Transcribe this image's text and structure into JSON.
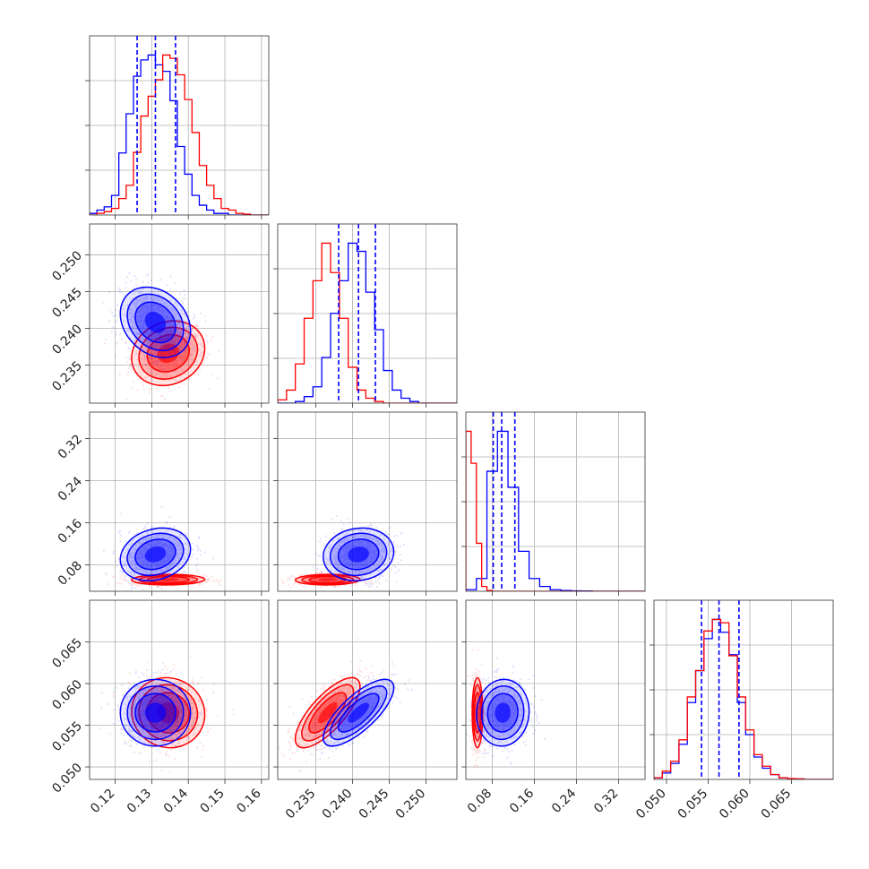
{
  "chart_data": {
    "type": "corner",
    "title": "",
    "colors": {
      "series_a": "#0000ff",
      "series_b": "#ff0000"
    },
    "grid": true,
    "parameters": [
      {
        "range": [
          0.113,
          0.162
        ],
        "ticks": [
          0.12,
          0.13,
          0.14,
          0.15,
          0.16
        ],
        "tick_labels": [
          "0.12",
          "0.13",
          "0.14",
          "0.15",
          "0.16"
        ],
        "label": ""
      },
      {
        "range": [
          0.2298,
          0.2542
        ],
        "ticks": [
          0.235,
          0.24,
          0.245,
          0.25
        ],
        "tick_labels": [
          "0.235",
          "0.240",
          "0.245",
          "0.250"
        ],
        "label": ""
      },
      {
        "range": [
          0.03,
          0.37
        ],
        "ticks": [
          0.08,
          0.16,
          0.24,
          0.32
        ],
        "tick_labels": [
          "0.08",
          "0.16",
          "0.24",
          "0.32"
        ],
        "label": ""
      },
      {
        "range": [
          0.0485,
          0.07
        ],
        "ticks": [
          0.05,
          0.055,
          0.06,
          0.065
        ],
        "tick_labels": [
          "0.050",
          "0.055",
          "0.060",
          "0.065"
        ],
        "label": ""
      }
    ],
    "series": [
      {
        "color": "#0000ff",
        "mean": [
          0.131,
          0.2408,
          0.1,
          0.0565
        ],
        "std": [
          0.0048,
          0.0024,
          0.025,
          0.002
        ],
        "quantiles": [
          [
            0.126,
            0.131,
            0.1365
          ],
          [
            0.2381,
            0.2408,
            0.2431
          ],
          [
            0.082,
            0.098,
            0.123
          ],
          [
            0.0542,
            0.0563,
            0.0587
          ]
        ],
        "histograms": [
          {
            "edges": [
              0.113,
              0.115,
              0.117,
              0.119,
              0.121,
              0.123,
              0.125,
              0.127,
              0.129,
              0.131,
              0.133,
              0.135,
              0.137,
              0.139,
              0.141,
              0.143,
              0.145,
              0.147,
              0.149,
              0.151,
              0.153,
              0.155,
              0.157,
              0.159,
              0.162
            ],
            "counts": [
              1,
              3,
              5,
              12,
              38,
              62,
              85,
              95,
              98,
              92,
              88,
              70,
              42,
              25,
              12,
              6,
              3,
              1,
              1,
              0,
              0,
              0,
              0,
              0
            ]
          },
          {
            "edges": [
              0.2298,
              0.231,
              0.2322,
              0.2334,
              0.2346,
              0.2358,
              0.237,
              0.2382,
              0.2394,
              0.2406,
              0.2418,
              0.243,
              0.2442,
              0.2454,
              0.2466,
              0.2478,
              0.249,
              0.2502,
              0.2514,
              0.2526,
              0.2542
            ],
            "counts": [
              0,
              0,
              1,
              4,
              10,
              28,
              55,
              75,
              98,
              93,
              68,
              45,
              20,
              8,
              3,
              1,
              0,
              0,
              0,
              0
            ]
          },
          {
            "edges": [
              0.03,
              0.05,
              0.07,
              0.09,
              0.11,
              0.13,
              0.15,
              0.17,
              0.19,
              0.21,
              0.23,
              0.25,
              0.27,
              0.29,
              0.31,
              0.33,
              0.35,
              0.37
            ],
            "counts": [
              1,
              8,
              75,
              100,
              65,
              25,
              8,
              3,
              1,
              0.5,
              0.3,
              0.2,
              0,
              0,
              0,
              0,
              0
            ]
          },
          {
            "edges": [
              0.0485,
              0.0495,
              0.0505,
              0.0515,
              0.0525,
              0.0535,
              0.0545,
              0.0555,
              0.0565,
              0.0575,
              0.0585,
              0.0595,
              0.0605,
              0.0615,
              0.0625,
              0.0635,
              0.0645,
              0.0655,
              0.0665,
              0.0675,
              0.07
            ],
            "counts": [
              1,
              4,
              10,
              22,
              48,
              68,
              88,
              100,
              92,
              78,
              48,
              28,
              14,
              7,
              3,
              1,
              0.5,
              0.3,
              0,
              0
            ]
          }
        ],
        "correlations": {
          "1-0": -0.25,
          "2-0": 0.2,
          "2-1": 0.1,
          "3-0": 0.0,
          "3-1": 0.75,
          "3-2": 0.05
        }
      },
      {
        "color": "#ff0000",
        "mean": [
          0.1345,
          0.2366,
          0.052,
          0.0565
        ],
        "std": [
          0.005,
          0.0022,
          0.005,
          0.0021
        ],
        "histograms": [
          {
            "edges": [
              0.113,
              0.115,
              0.117,
              0.119,
              0.121,
              0.123,
              0.125,
              0.127,
              0.129,
              0.131,
              0.133,
              0.135,
              0.137,
              0.139,
              0.141,
              0.143,
              0.145,
              0.147,
              0.149,
              0.151,
              0.153,
              0.155,
              0.157,
              0.159,
              0.162
            ],
            "counts": [
              0,
              1,
              2,
              4,
              10,
              18,
              38,
              60,
              72,
              82,
              97,
              95,
              85,
              70,
              50,
              30,
              18,
              10,
              4,
              3,
              1,
              0.5,
              0,
              0
            ]
          },
          {
            "edges": [
              0.2298,
              0.231,
              0.2322,
              0.2334,
              0.2346,
              0.2358,
              0.237,
              0.2382,
              0.2394,
              0.2406,
              0.2418,
              0.243,
              0.2442,
              0.2454,
              0.2466,
              0.2478,
              0.249,
              0.2502,
              0.2514,
              0.2526,
              0.2542
            ],
            "counts": [
              2,
              8,
              24,
              52,
              75,
              98,
              80,
              52,
              22,
              8,
              3,
              1,
              0,
              0,
              0,
              0,
              0,
              0,
              0,
              0
            ]
          },
          {
            "edges": [
              0.03,
              0.04,
              0.05,
              0.06,
              0.07,
              0.08,
              0.1,
              0.14,
              0.2,
              0.37
            ],
            "counts": [
              100,
              80,
              30,
              3,
              0.5,
              0,
              0,
              0,
              0
            ]
          },
          {
            "edges": [
              0.0485,
              0.0495,
              0.0505,
              0.0515,
              0.0525,
              0.0535,
              0.0545,
              0.0555,
              0.0565,
              0.0575,
              0.0585,
              0.0595,
              0.0605,
              0.0615,
              0.0625,
              0.0635,
              0.0645,
              0.0655,
              0.0665,
              0.0675,
              0.07
            ],
            "counts": [
              1,
              5,
              11,
              24,
              50,
              66,
              90,
              97,
              95,
              75,
              50,
              30,
              15,
              8,
              3,
              1,
              0.5,
              0.3,
              0,
              0
            ]
          }
        ],
        "correlations": {
          "1-0": 0.15,
          "2-0": 0.05,
          "2-1": 0.05,
          "3-0": -0.05,
          "3-1": 0.75,
          "3-2": 0.0
        }
      }
    ]
  }
}
